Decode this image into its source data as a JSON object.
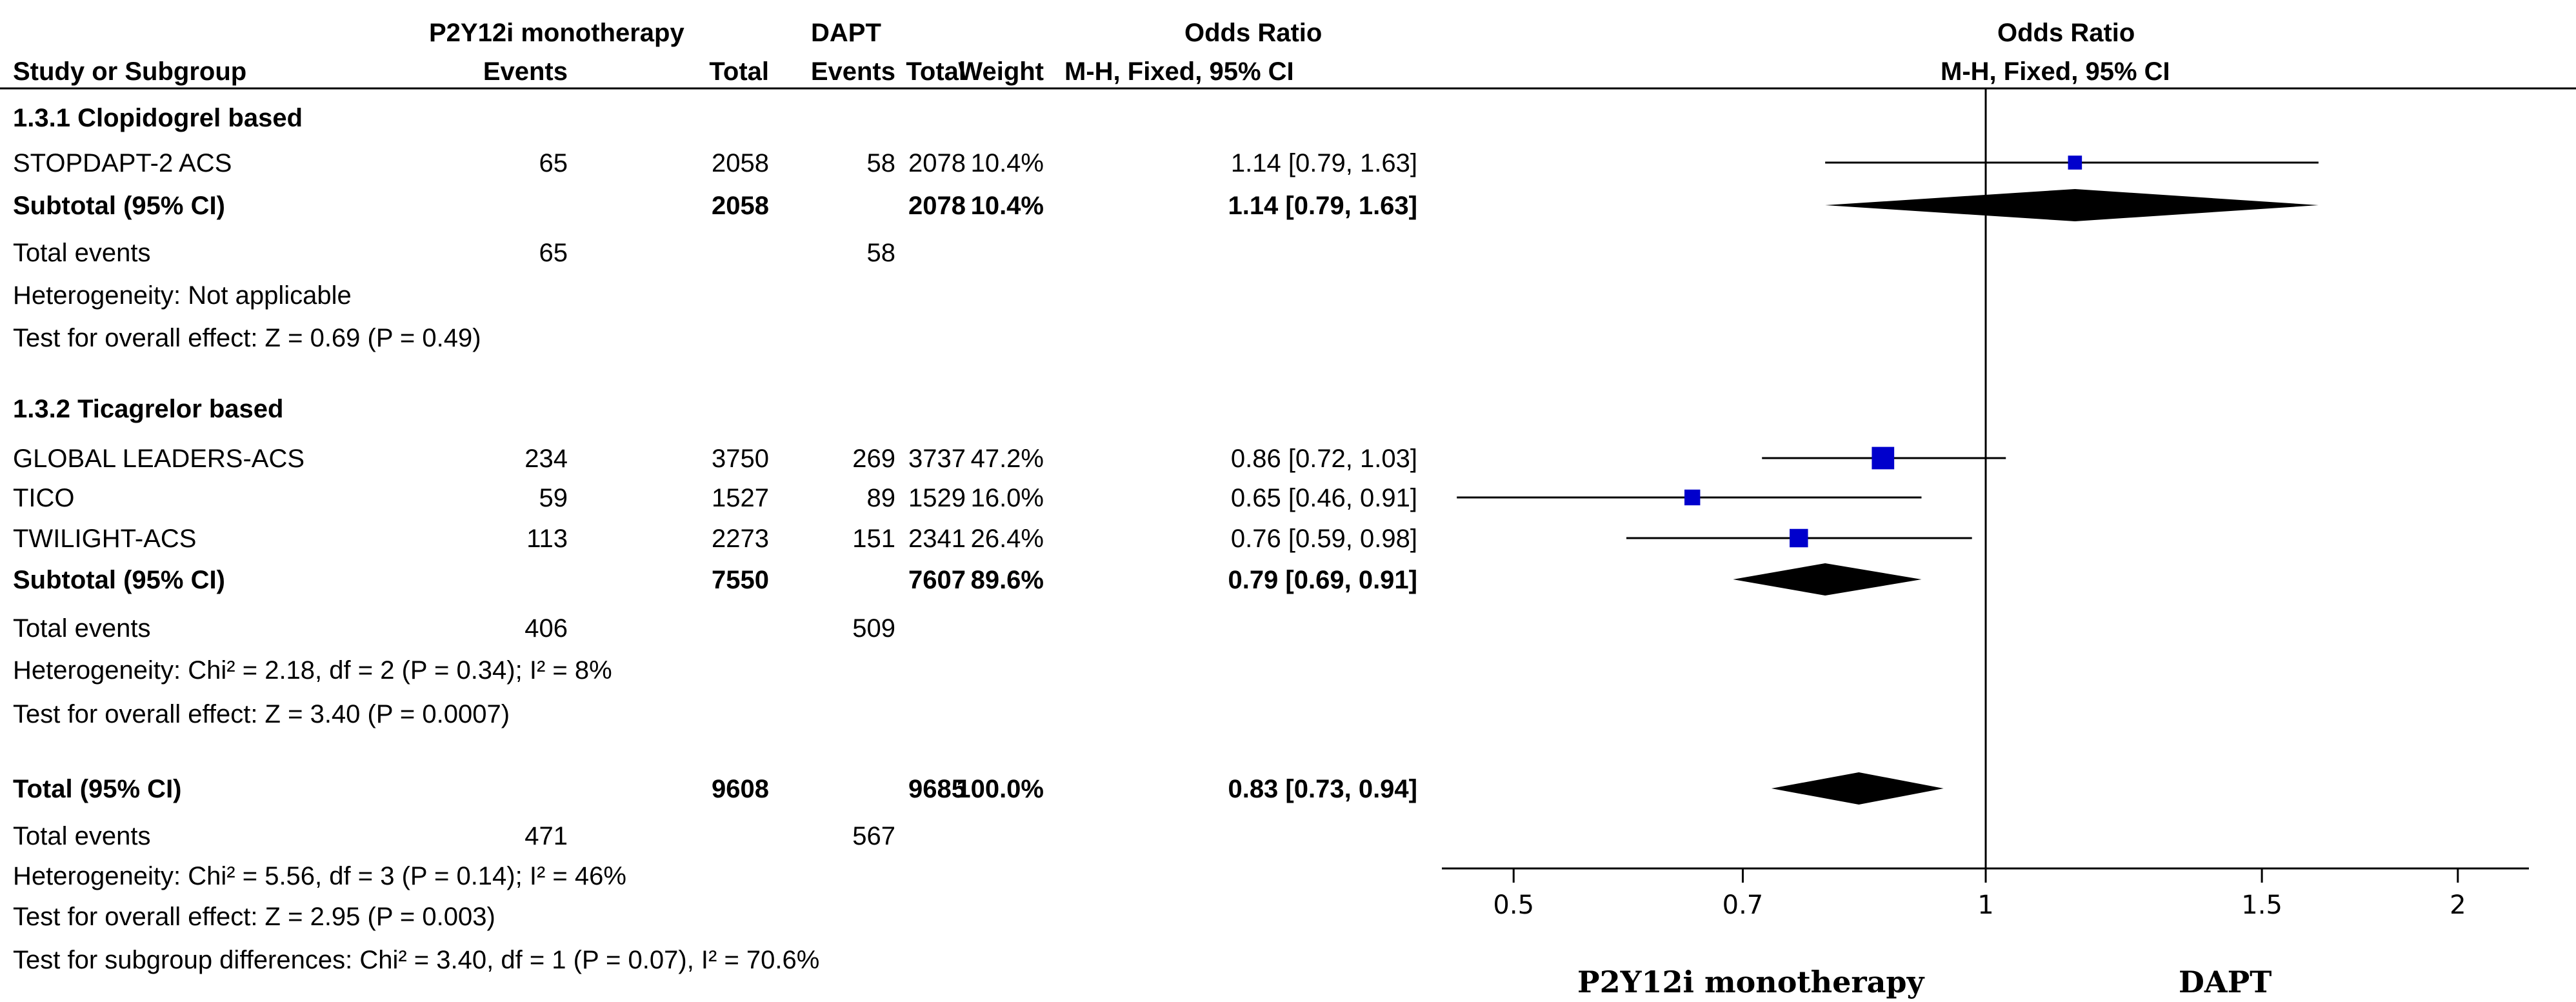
{
  "header": {
    "group_exp": "P2Y12i monotherapy",
    "group_ctl": "DAPT",
    "or_header_table": "Odds Ratio",
    "study_col": "Study or Subgroup",
    "events": "Events",
    "total": "Total",
    "weight": "Weight",
    "method": "M-H, Fixed, 95% CI",
    "or_header_plot": "Odds Ratio",
    "method_plot": "M-H, Fixed, 95% CI"
  },
  "chart_data": {
    "type": "forest",
    "x_scale": "log",
    "xlim": [
      0.45,
      2.22
    ],
    "xticks": [
      0.5,
      0.7,
      1,
      1.5,
      2
    ],
    "xtick_labels": [
      "0.5",
      "0.7",
      "1",
      "1.5",
      "2"
    ],
    "reference_line": 1,
    "favours_left": "P2Y12i monotherapy",
    "favours_right": "DAPT",
    "rows": [
      {
        "kind": "group",
        "label": "1.3.1 Clopidogrel based"
      },
      {
        "kind": "study",
        "label": "STOPDAPT-2 ACS",
        "e_events": "65",
        "e_total": "2058",
        "c_events": "58",
        "c_total": "2078",
        "weight": "10.4%",
        "ci": "1.14 [0.79, 1.63]",
        "or": 1.14,
        "lo": 0.79,
        "hi": 1.63,
        "w": 10.4
      },
      {
        "kind": "subtotal",
        "label": "Subtotal (95% CI)",
        "e_total": "2058",
        "c_total": "2078",
        "weight": "10.4%",
        "ci": "1.14 [0.79, 1.63]",
        "or": 1.14,
        "lo": 0.79,
        "hi": 1.63
      },
      {
        "kind": "events",
        "label": "Total events",
        "e_events": "65",
        "c_events": "58"
      },
      {
        "kind": "note",
        "label": "Heterogeneity: Not applicable"
      },
      {
        "kind": "note",
        "label": "Test for overall effect: Z = 0.69 (P = 0.49)"
      },
      {
        "kind": "group",
        "label": "1.3.2 Ticagrelor based"
      },
      {
        "kind": "study",
        "label": "GLOBAL LEADERS-ACS",
        "e_events": "234",
        "e_total": "3750",
        "c_events": "269",
        "c_total": "3737",
        "weight": "47.2%",
        "ci": "0.86 [0.72, 1.03]",
        "or": 0.86,
        "lo": 0.72,
        "hi": 1.03,
        "w": 47.2
      },
      {
        "kind": "study",
        "label": "TICO",
        "e_events": "59",
        "e_total": "1527",
        "c_events": "89",
        "c_total": "1529",
        "weight": "16.0%",
        "ci": "0.65 [0.46, 0.91]",
        "or": 0.65,
        "lo": 0.46,
        "hi": 0.91,
        "w": 16.0
      },
      {
        "kind": "study",
        "label": "TWILIGHT-ACS",
        "e_events": "113",
        "e_total": "2273",
        "c_events": "151",
        "c_total": "2341",
        "weight": "26.4%",
        "ci": "0.76 [0.59, 0.98]",
        "or": 0.76,
        "lo": 0.59,
        "hi": 0.98,
        "w": 26.4
      },
      {
        "kind": "subtotal",
        "label": "Subtotal (95% CI)",
        "e_total": "7550",
        "c_total": "7607",
        "weight": "89.6%",
        "ci": "0.79 [0.69, 0.91]",
        "or": 0.79,
        "lo": 0.69,
        "hi": 0.91
      },
      {
        "kind": "events",
        "label": "Total events",
        "e_events": "406",
        "c_events": "509"
      },
      {
        "kind": "note",
        "label": "Heterogeneity: Chi² = 2.18, df = 2 (P = 0.34); I² = 8%"
      },
      {
        "kind": "note",
        "label": "Test for overall effect: Z = 3.40 (P = 0.0007)"
      },
      {
        "kind": "subtotal",
        "label": "Total (95% CI)",
        "e_total": "9608",
        "c_total": "9685",
        "weight": "100.0%",
        "ci": "0.83 [0.73, 0.94]",
        "or": 0.83,
        "lo": 0.73,
        "hi": 0.94
      },
      {
        "kind": "events",
        "label": "Total events",
        "e_events": "471",
        "c_events": "567"
      },
      {
        "kind": "note",
        "label": "Heterogeneity: Chi² = 5.56, df = 3 (P = 0.14); I² = 46%"
      },
      {
        "kind": "note",
        "label": "Test for overall effect: Z = 2.95 (P = 0.003)"
      },
      {
        "kind": "note",
        "label": "Test for subgroup differences: Chi² = 3.40, df = 1 (P = 0.07), I² = 70.6%"
      }
    ],
    "colors": {
      "square": "#0000cc",
      "line": "#000000",
      "diamond": "#000000"
    }
  }
}
